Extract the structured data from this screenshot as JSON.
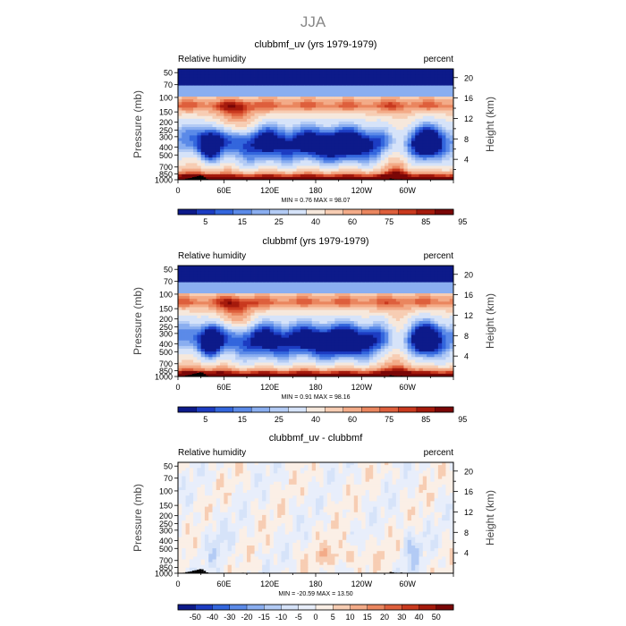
{
  "figure_title": "JJA",
  "colors": {
    "rh": [
      "#0d1a8a",
      "#1c3cc2",
      "#3366dd",
      "#5b8ae8",
      "#8aaef0",
      "#b3cbf5",
      "#d6e3f9",
      "#f6e8dc",
      "#f7cdb3",
      "#f3ab88",
      "#ea865f",
      "#de5f3c",
      "#c9391e",
      "#a51a0c",
      "#7a0606"
    ],
    "diff": [
      "#0d1a8a",
      "#1c3cc2",
      "#3366dd",
      "#5b8ae8",
      "#8aaef0",
      "#b3cbf5",
      "#d6e3f9",
      "#e8eefb",
      "#fbefe6",
      "#f7cdb3",
      "#f3ab88",
      "#ea865f",
      "#de5f3c",
      "#c9391e",
      "#a51a0c",
      "#7a0606"
    ]
  },
  "chart_data": [
    {
      "type": "heatmap",
      "title": "clubbmf_uv (yrs 1979-1979)",
      "left_label": "Relative humidity",
      "right_label": "percent",
      "ylabel": "Pressure (mb)",
      "y2label": "Height (km)",
      "x_ticks": [
        "0",
        "60E",
        "120E",
        "180",
        "120W",
        "60W"
      ],
      "x_tick_lon": [
        0,
        60,
        120,
        180,
        240,
        300
      ],
      "y_ticks": [
        "50",
        "100",
        "150",
        "200",
        "250",
        "300",
        "400",
        "500",
        "700",
        "850",
        "1000"
      ],
      "y_tick_p": [
        50,
        70,
        100,
        150,
        200,
        250,
        300,
        400,
        500,
        700,
        850,
        1000
      ],
      "y_tick_labels_top": [
        "50",
        "70"
      ],
      "y2_ticks": [
        "20",
        "16",
        "12",
        "8",
        "4"
      ],
      "minmax": "MIN =    0.76   MAX =   98.07",
      "colorbar_labels": [
        "5",
        "15",
        "25",
        "40",
        "60",
        "75",
        "85",
        "95"
      ],
      "field": "rh",
      "variant": 0
    },
    {
      "type": "heatmap",
      "title": "clubbmf (yrs 1979-1979)",
      "left_label": "Relative humidity",
      "right_label": "percent",
      "ylabel": "Pressure (mb)",
      "y2label": "Height (km)",
      "x_ticks": [
        "0",
        "60E",
        "120E",
        "180",
        "120W",
        "60W"
      ],
      "x_tick_lon": [
        0,
        60,
        120,
        180,
        240,
        300
      ],
      "y_ticks": [
        "50",
        "100",
        "150",
        "200",
        "250",
        "300",
        "400",
        "500",
        "700",
        "850",
        "1000"
      ],
      "y_tick_p": [
        50,
        70,
        100,
        150,
        200,
        250,
        300,
        400,
        500,
        700,
        850,
        1000
      ],
      "y_tick_labels_top": [
        "50",
        "70"
      ],
      "y2_ticks": [
        "20",
        "16",
        "12",
        "8",
        "4"
      ],
      "minmax": "MIN =    0.91   MAX =   98.16",
      "colorbar_labels": [
        "5",
        "15",
        "25",
        "40",
        "60",
        "75",
        "85",
        "95"
      ],
      "field": "rh",
      "variant": 1
    },
    {
      "type": "heatmap",
      "title": "clubbmf_uv - clubbmf",
      "left_label": "Relative humidity",
      "right_label": "percent",
      "ylabel": "Pressure (mb)",
      "y2label": "Height (km)",
      "x_ticks": [
        "0",
        "60E",
        "120E",
        "180",
        "120W",
        "60W"
      ],
      "x_tick_lon": [
        0,
        60,
        120,
        180,
        240,
        300
      ],
      "y_ticks": [
        "50",
        "100",
        "150",
        "200",
        "250",
        "300",
        "400",
        "500",
        "700",
        "850",
        "1000"
      ],
      "y_tick_p": [
        50,
        70,
        100,
        150,
        200,
        250,
        300,
        400,
        500,
        700,
        850,
        1000
      ],
      "y_tick_labels_top": [
        "50",
        "70"
      ],
      "y2_ticks": [
        "20",
        "16",
        "12",
        "8",
        "4"
      ],
      "minmax": "MIN =  -20.59   MAX =   13.50",
      "colorbar_labels": [
        "-50",
        "-40",
        "-30",
        "-20",
        "-15",
        "-10",
        "-5",
        "0",
        "5",
        "10",
        "15",
        "20",
        "30",
        "40",
        "50"
      ],
      "field": "diff",
      "variant": 2
    }
  ]
}
